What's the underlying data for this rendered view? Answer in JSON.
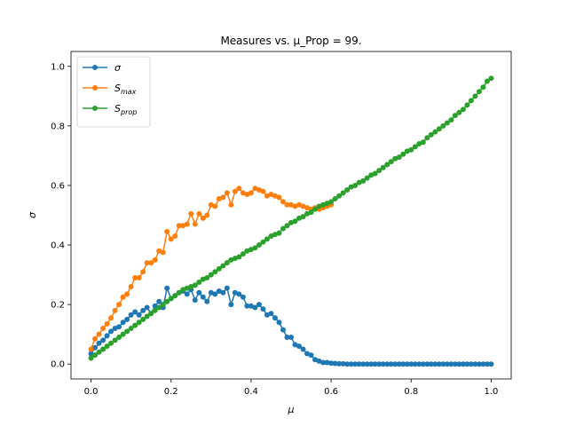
{
  "chart_data": {
    "type": "line",
    "title": "Measures vs. μ_Prop = 99.",
    "xlabel": "μ",
    "ylabel": "σ",
    "xlim": [
      -0.05,
      1.05
    ],
    "ylim": [
      -0.05,
      1.05
    ],
    "xticks": [
      0.0,
      0.2,
      0.4,
      0.6,
      0.8,
      1.0
    ],
    "yticks": [
      0.0,
      0.2,
      0.4,
      0.6,
      0.8,
      1.0
    ],
    "xtick_labels": [
      "0.0",
      "0.2",
      "0.4",
      "0.6",
      "0.8",
      "1.0"
    ],
    "ytick_labels": [
      "0.0",
      "0.2",
      "0.4",
      "0.6",
      "0.8",
      "1.0"
    ],
    "grid": false,
    "legend_position": "top-left",
    "series": [
      {
        "name": "σ",
        "legend_base": "σ",
        "legend_sub": "",
        "color": "#1f77b4",
        "x": [
          0.0,
          0.01,
          0.02,
          0.03,
          0.04,
          0.05,
          0.06,
          0.07,
          0.08,
          0.09,
          0.1,
          0.11,
          0.12,
          0.13,
          0.14,
          0.15,
          0.16,
          0.17,
          0.18,
          0.19,
          0.2,
          0.21,
          0.22,
          0.23,
          0.24,
          0.25,
          0.26,
          0.27,
          0.28,
          0.29,
          0.3,
          0.31,
          0.32,
          0.33,
          0.34,
          0.35,
          0.36,
          0.37,
          0.38,
          0.39,
          0.4,
          0.41,
          0.42,
          0.43,
          0.44,
          0.45,
          0.46,
          0.47,
          0.48,
          0.49,
          0.5,
          0.51,
          0.52,
          0.53,
          0.54,
          0.55,
          0.56,
          0.57,
          0.58,
          0.59,
          0.6,
          0.61,
          0.62,
          0.63,
          0.64,
          0.65,
          0.66,
          0.67,
          0.68,
          0.69,
          0.7,
          0.71,
          0.72,
          0.73,
          0.74,
          0.75,
          0.76,
          0.77,
          0.78,
          0.79,
          0.8,
          0.81,
          0.82,
          0.83,
          0.84,
          0.85,
          0.86,
          0.87,
          0.88,
          0.89,
          0.9,
          0.91,
          0.92,
          0.93,
          0.94,
          0.95,
          0.96,
          0.97,
          0.98,
          0.99,
          1.0
        ],
        "y": [
          0.035,
          0.055,
          0.07,
          0.08,
          0.095,
          0.11,
          0.12,
          0.125,
          0.14,
          0.15,
          0.165,
          0.175,
          0.165,
          0.18,
          0.19,
          0.17,
          0.195,
          0.21,
          0.19,
          0.255,
          0.22,
          0.23,
          0.24,
          0.245,
          0.235,
          0.25,
          0.215,
          0.24,
          0.225,
          0.21,
          0.24,
          0.235,
          0.245,
          0.24,
          0.255,
          0.2,
          0.24,
          0.235,
          0.225,
          0.195,
          0.195,
          0.19,
          0.2,
          0.185,
          0.165,
          0.17,
          0.155,
          0.14,
          0.115,
          0.09,
          0.09,
          0.065,
          0.06,
          0.05,
          0.035,
          0.03,
          0.015,
          0.01,
          0.005,
          0.005,
          0.003,
          0.002,
          0.001,
          0.001,
          0.0,
          0.0,
          0.0,
          0.0,
          0.0,
          0.0,
          0.0,
          0.0,
          0.0,
          0.0,
          0.0,
          0.0,
          0.0,
          0.0,
          0.0,
          0.0,
          0.0,
          0.0,
          0.0,
          0.0,
          0.0,
          0.0,
          0.0,
          0.0,
          0.0,
          0.0,
          0.0,
          0.0,
          0.0,
          0.0,
          0.0,
          0.0,
          0.0,
          0.0,
          0.0,
          0.0,
          0.0
        ]
      },
      {
        "name": "S_max",
        "legend_base": "S",
        "legend_sub": "max",
        "color": "#ff7f0e",
        "x": [
          0.0,
          0.01,
          0.02,
          0.03,
          0.04,
          0.05,
          0.06,
          0.07,
          0.08,
          0.09,
          0.1,
          0.11,
          0.12,
          0.13,
          0.14,
          0.15,
          0.16,
          0.17,
          0.18,
          0.19,
          0.2,
          0.21,
          0.22,
          0.23,
          0.24,
          0.25,
          0.26,
          0.27,
          0.28,
          0.29,
          0.3,
          0.31,
          0.32,
          0.33,
          0.34,
          0.35,
          0.36,
          0.37,
          0.38,
          0.39,
          0.4,
          0.41,
          0.42,
          0.43,
          0.44,
          0.45,
          0.46,
          0.47,
          0.48,
          0.49,
          0.5,
          0.51,
          0.52,
          0.53,
          0.54,
          0.55,
          0.56,
          0.57,
          0.58,
          0.59,
          0.6
        ],
        "y": [
          0.05,
          0.085,
          0.1,
          0.12,
          0.135,
          0.155,
          0.18,
          0.2,
          0.225,
          0.235,
          0.26,
          0.29,
          0.29,
          0.31,
          0.34,
          0.34,
          0.35,
          0.38,
          0.375,
          0.445,
          0.42,
          0.43,
          0.465,
          0.465,
          0.47,
          0.505,
          0.47,
          0.505,
          0.49,
          0.5,
          0.535,
          0.53,
          0.555,
          0.56,
          0.575,
          0.535,
          0.58,
          0.59,
          0.575,
          0.57,
          0.575,
          0.59,
          0.585,
          0.58,
          0.565,
          0.57,
          0.565,
          0.56,
          0.545,
          0.535,
          0.535,
          0.53,
          0.535,
          0.53,
          0.525,
          0.52,
          0.525,
          0.52,
          0.525,
          0.53,
          0.535
        ]
      },
      {
        "name": "S_prop",
        "legend_base": "S",
        "legend_sub": "prop",
        "color": "#2ca02c",
        "x": [
          0.0,
          0.01,
          0.02,
          0.03,
          0.04,
          0.05,
          0.06,
          0.07,
          0.08,
          0.09,
          0.1,
          0.11,
          0.12,
          0.13,
          0.14,
          0.15,
          0.16,
          0.17,
          0.18,
          0.19,
          0.2,
          0.21,
          0.22,
          0.23,
          0.24,
          0.25,
          0.26,
          0.27,
          0.28,
          0.29,
          0.3,
          0.31,
          0.32,
          0.33,
          0.34,
          0.35,
          0.36,
          0.37,
          0.38,
          0.39,
          0.4,
          0.41,
          0.42,
          0.43,
          0.44,
          0.45,
          0.46,
          0.47,
          0.48,
          0.49,
          0.5,
          0.51,
          0.52,
          0.53,
          0.54,
          0.55,
          0.56,
          0.57,
          0.58,
          0.59,
          0.6,
          0.61,
          0.62,
          0.63,
          0.64,
          0.65,
          0.66,
          0.67,
          0.68,
          0.69,
          0.7,
          0.71,
          0.72,
          0.73,
          0.74,
          0.75,
          0.76,
          0.77,
          0.78,
          0.79,
          0.8,
          0.81,
          0.82,
          0.83,
          0.84,
          0.85,
          0.86,
          0.87,
          0.88,
          0.89,
          0.9,
          0.91,
          0.92,
          0.93,
          0.94,
          0.95,
          0.96,
          0.97,
          0.98,
          0.99,
          1.0
        ],
        "y": [
          0.02,
          0.03,
          0.04,
          0.05,
          0.06,
          0.07,
          0.08,
          0.09,
          0.1,
          0.11,
          0.12,
          0.13,
          0.14,
          0.15,
          0.16,
          0.17,
          0.18,
          0.19,
          0.2,
          0.21,
          0.22,
          0.23,
          0.24,
          0.25,
          0.255,
          0.26,
          0.265,
          0.275,
          0.285,
          0.29,
          0.3,
          0.31,
          0.32,
          0.33,
          0.34,
          0.35,
          0.355,
          0.36,
          0.37,
          0.38,
          0.385,
          0.39,
          0.4,
          0.41,
          0.42,
          0.43,
          0.435,
          0.44,
          0.455,
          0.465,
          0.475,
          0.48,
          0.49,
          0.495,
          0.505,
          0.51,
          0.52,
          0.53,
          0.535,
          0.54,
          0.545,
          0.555,
          0.565,
          0.575,
          0.585,
          0.595,
          0.6,
          0.61,
          0.615,
          0.625,
          0.635,
          0.64,
          0.65,
          0.66,
          0.67,
          0.68,
          0.69,
          0.695,
          0.705,
          0.715,
          0.72,
          0.73,
          0.74,
          0.745,
          0.76,
          0.77,
          0.78,
          0.79,
          0.8,
          0.81,
          0.82,
          0.835,
          0.845,
          0.855,
          0.87,
          0.885,
          0.9,
          0.915,
          0.93,
          0.95,
          0.96
        ]
      }
    ]
  }
}
